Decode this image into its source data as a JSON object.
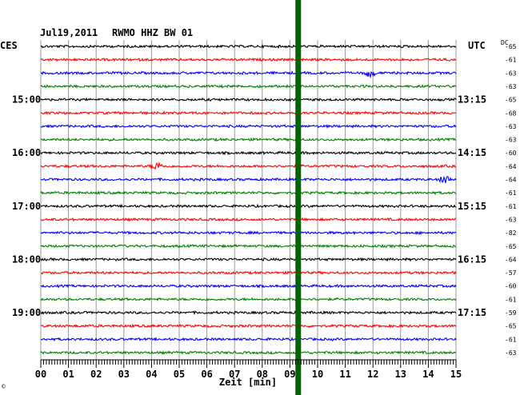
{
  "chart_data": {
    "type": "line",
    "header": {
      "date": "Jul19,2011",
      "station": "RWMO HHZ BW 01"
    },
    "left_timezone": "CES",
    "right_timezone": "UTC",
    "dc_header": "DC",
    "xlabel": "Zeit [min]",
    "xlim": [
      0,
      15
    ],
    "x_ticks": [
      "00",
      "01",
      "02",
      "03",
      "04",
      "05",
      "06",
      "07",
      "08",
      "09",
      "10",
      "11",
      "12",
      "13",
      "14",
      "15"
    ],
    "left_hour_labels": [
      {
        "row": 4,
        "text": "15:00"
      },
      {
        "row": 8,
        "text": "16:00"
      },
      {
        "row": 12,
        "text": "17:00"
      },
      {
        "row": 16,
        "text": "18:00"
      },
      {
        "row": 20,
        "text": "19:00"
      }
    ],
    "right_hour_labels": [
      {
        "row": 4,
        "text": "13:15"
      },
      {
        "row": 8,
        "text": "14:15"
      },
      {
        "row": 12,
        "text": "15:15"
      },
      {
        "row": 16,
        "text": "16:15"
      },
      {
        "row": 20,
        "text": "17:15"
      }
    ],
    "dc_values": [
      "-65",
      "-61",
      "-63",
      "-63",
      "-65",
      "-68",
      "-63",
      "-63",
      "-60",
      "-64",
      "-64",
      "-61",
      "-61",
      "-63",
      "-82",
      "-65",
      "-64",
      "-57",
      "-60",
      "-61",
      "-59",
      "-65",
      "-61",
      "-63"
    ],
    "trace_colors": [
      "#000000",
      "#ff0000",
      "#0000ff",
      "#008000"
    ],
    "highlight_band": {
      "minute": 9.3,
      "color": "#006400"
    },
    "events": [
      {
        "row": 2,
        "minute": 11.9
      },
      {
        "row": 9,
        "minute": 4.2
      },
      {
        "row": 10,
        "minute": 14.6
      }
    ],
    "watermark": "©"
  }
}
